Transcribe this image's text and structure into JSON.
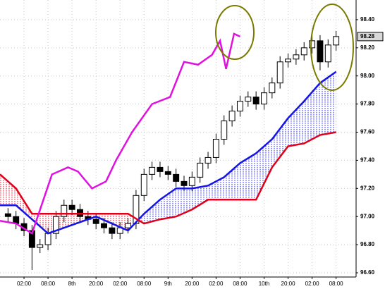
{
  "chart_data": {
    "type": "candlestick",
    "x": [
      -2,
      0,
      2,
      4,
      6,
      8,
      10,
      12,
      14,
      16,
      18,
      20,
      22,
      24,
      26,
      28,
      30,
      32,
      34,
      36,
      38,
      40,
      42,
      44,
      46,
      48,
      50,
      52,
      54,
      56,
      58,
      60,
      62,
      64,
      66,
      68,
      70,
      72,
      74,
      76,
      78,
      80
    ],
    "open": [
      97.02,
      97.0,
      96.95,
      96.9,
      96.78,
      96.8,
      96.88,
      97.0,
      97.08,
      97.05,
      97.0,
      96.98,
      96.95,
      96.92,
      96.88,
      96.92,
      96.95,
      97.15,
      97.3,
      97.35,
      97.32,
      97.3,
      97.25,
      97.22,
      97.28,
      97.38,
      97.42,
      97.55,
      97.68,
      97.75,
      97.82,
      97.85,
      97.8,
      97.88,
      97.95,
      98.1,
      98.12,
      98.15,
      98.2,
      98.25,
      98.1,
      98.22
    ],
    "high": [
      97.06,
      97.04,
      96.99,
      96.94,
      96.84,
      96.92,
      97.04,
      97.12,
      97.12,
      97.09,
      97.04,
      97.02,
      96.99,
      96.96,
      96.96,
      96.99,
      97.19,
      97.34,
      97.39,
      97.39,
      97.36,
      97.34,
      97.29,
      97.32,
      97.42,
      97.46,
      97.59,
      97.72,
      97.79,
      97.86,
      97.89,
      97.89,
      97.92,
      97.99,
      98.14,
      98.16,
      98.19,
      98.24,
      98.29,
      98.29,
      98.26,
      98.32
    ],
    "low": [
      96.96,
      96.91,
      96.86,
      96.62,
      96.74,
      96.76,
      96.84,
      96.96,
      97.01,
      96.96,
      96.94,
      96.91,
      96.88,
      96.84,
      96.84,
      96.88,
      96.91,
      97.11,
      97.26,
      97.28,
      97.26,
      97.21,
      97.18,
      97.18,
      97.24,
      97.34,
      97.38,
      97.51,
      97.64,
      97.71,
      97.78,
      97.76,
      97.76,
      97.84,
      97.91,
      98.06,
      98.08,
      98.11,
      98.16,
      98.04,
      98.06,
      98.18
    ],
    "close": [
      97.0,
      96.95,
      96.9,
      96.78,
      96.8,
      96.88,
      97.0,
      97.08,
      97.05,
      97.0,
      96.98,
      96.95,
      96.92,
      96.88,
      96.92,
      96.95,
      97.15,
      97.3,
      97.35,
      97.32,
      97.3,
      97.25,
      97.22,
      97.28,
      97.38,
      97.42,
      97.55,
      97.68,
      97.75,
      97.82,
      97.85,
      97.8,
      97.88,
      97.95,
      98.1,
      98.12,
      98.15,
      98.2,
      98.25,
      98.1,
      98.22,
      98.28
    ],
    "up_color": "#ffffff",
    "down_color": "#000000",
    "lines": [
      {
        "color": "#1414e6",
        "x": [
          -4,
          0,
          4,
          8,
          12,
          16,
          20,
          24,
          28,
          32,
          36,
          40,
          44,
          48,
          52,
          56,
          60,
          64,
          68,
          72,
          76,
          80
        ],
        "values": [
          97.08,
          97.08,
          96.98,
          96.88,
          96.92,
          96.96,
          97.0,
          96.95,
          96.9,
          97.02,
          97.12,
          97.2,
          97.2,
          97.22,
          97.28,
          97.38,
          97.45,
          97.55,
          97.7,
          97.82,
          97.95,
          98.03
        ]
      },
      {
        "color": "#e0001a",
        "x": [
          -4,
          0,
          4,
          8,
          12,
          16,
          20,
          24,
          28,
          32,
          36,
          40,
          44,
          48,
          52,
          56,
          60,
          64,
          68,
          72,
          76,
          80
        ],
        "values": [
          97.3,
          97.2,
          97.02,
          97.02,
          97.02,
          97.02,
          97.02,
          97.02,
          97.02,
          96.95,
          96.98,
          97.0,
          97.05,
          97.12,
          97.12,
          97.12,
          97.12,
          97.35,
          97.5,
          97.52,
          97.58,
          97.6
        ]
      },
      {
        "color": "#e010e0",
        "x": [
          -4,
          0,
          4,
          9,
          13,
          15.5,
          19,
          22.5,
          25,
          29,
          34,
          38.5,
          42,
          45.5,
          49,
          51,
          52.5,
          54.5,
          56
        ],
        "values": [
          96.97,
          96.95,
          96.88,
          97.3,
          97.35,
          97.32,
          97.2,
          97.25,
          97.4,
          97.6,
          97.8,
          97.85,
          98.1,
          98.08,
          98.15,
          98.25,
          98.05,
          98.3,
          98.28
        ]
      }
    ],
    "xlim": [
      -4,
      85
    ],
    "ylim": [
      96.57,
      98.54
    ],
    "xticks": [
      {
        "value": 2,
        "label": "02:00"
      },
      {
        "value": 8,
        "label": "08:00"
      },
      {
        "value": 14,
        "label": "8th"
      },
      {
        "value": 20,
        "label": "20:00"
      },
      {
        "value": 26,
        "label": "02:00"
      },
      {
        "value": 32,
        "label": "08:00"
      },
      {
        "value": 38,
        "label": "9th"
      },
      {
        "value": 44,
        "label": "20:00"
      },
      {
        "value": 50,
        "label": "02:00"
      },
      {
        "value": 56,
        "label": "08:00"
      },
      {
        "value": 62,
        "label": "10th"
      },
      {
        "value": 68,
        "label": "20:00"
      },
      {
        "value": 74,
        "label": "02:00"
      },
      {
        "value": 80,
        "label": "08:00"
      }
    ],
    "yticks": [
      {
        "value": 96.6,
        "label": "96.60"
      },
      {
        "value": 96.8,
        "label": "96.80"
      },
      {
        "value": 97.0,
        "label": "97.00"
      },
      {
        "value": 97.2,
        "label": "97.20"
      },
      {
        "value": 97.4,
        "label": "97.40"
      },
      {
        "value": 97.6,
        "label": "97.60"
      },
      {
        "value": 97.8,
        "label": "97.80"
      },
      {
        "value": 98.0,
        "label": "98.00"
      },
      {
        "value": 98.2,
        "label": "98.20"
      },
      {
        "value": 98.4,
        "label": "98.40"
      }
    ],
    "last_price": {
      "value": 98.28,
      "label": "98.28"
    },
    "grid": true
  }
}
